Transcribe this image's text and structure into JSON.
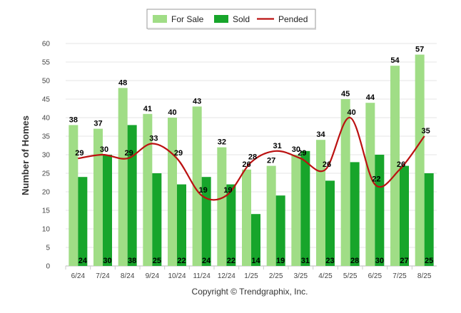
{
  "chart_data": {
    "type": "bar",
    "categories": [
      "6/24",
      "7/24",
      "8/24",
      "9/24",
      "10/24",
      "11/24",
      "12/24",
      "1/25",
      "2/25",
      "3/25",
      "4/25",
      "5/25",
      "6/25",
      "7/25",
      "8/25"
    ],
    "ylabel": "Number of Homes",
    "xlabel": "",
    "ylim": [
      0,
      60
    ],
    "yticks": [
      0,
      5,
      10,
      15,
      20,
      25,
      30,
      35,
      40,
      45,
      50,
      55,
      60
    ],
    "grid": true,
    "legend_position": "top-center",
    "series": [
      {
        "name": "For Sale",
        "kind": "bar",
        "color": "#a0dd86",
        "values": [
          38,
          37,
          48,
          41,
          40,
          43,
          32,
          26,
          27,
          30,
          34,
          45,
          44,
          54,
          57
        ]
      },
      {
        "name": "Sold",
        "kind": "bar",
        "color": "#17a52b",
        "values": [
          24,
          30,
          38,
          25,
          22,
          24,
          22,
          14,
          19,
          31,
          23,
          28,
          30,
          27,
          25
        ]
      },
      {
        "name": "Pended",
        "kind": "line",
        "color": "#bb1111",
        "values": [
          29,
          30,
          29,
          33,
          29,
          19,
          19,
          28,
          31,
          29,
          26,
          40,
          22,
          26,
          35
        ]
      }
    ],
    "footer": "Copyright © Trendgraphix, Inc."
  }
}
